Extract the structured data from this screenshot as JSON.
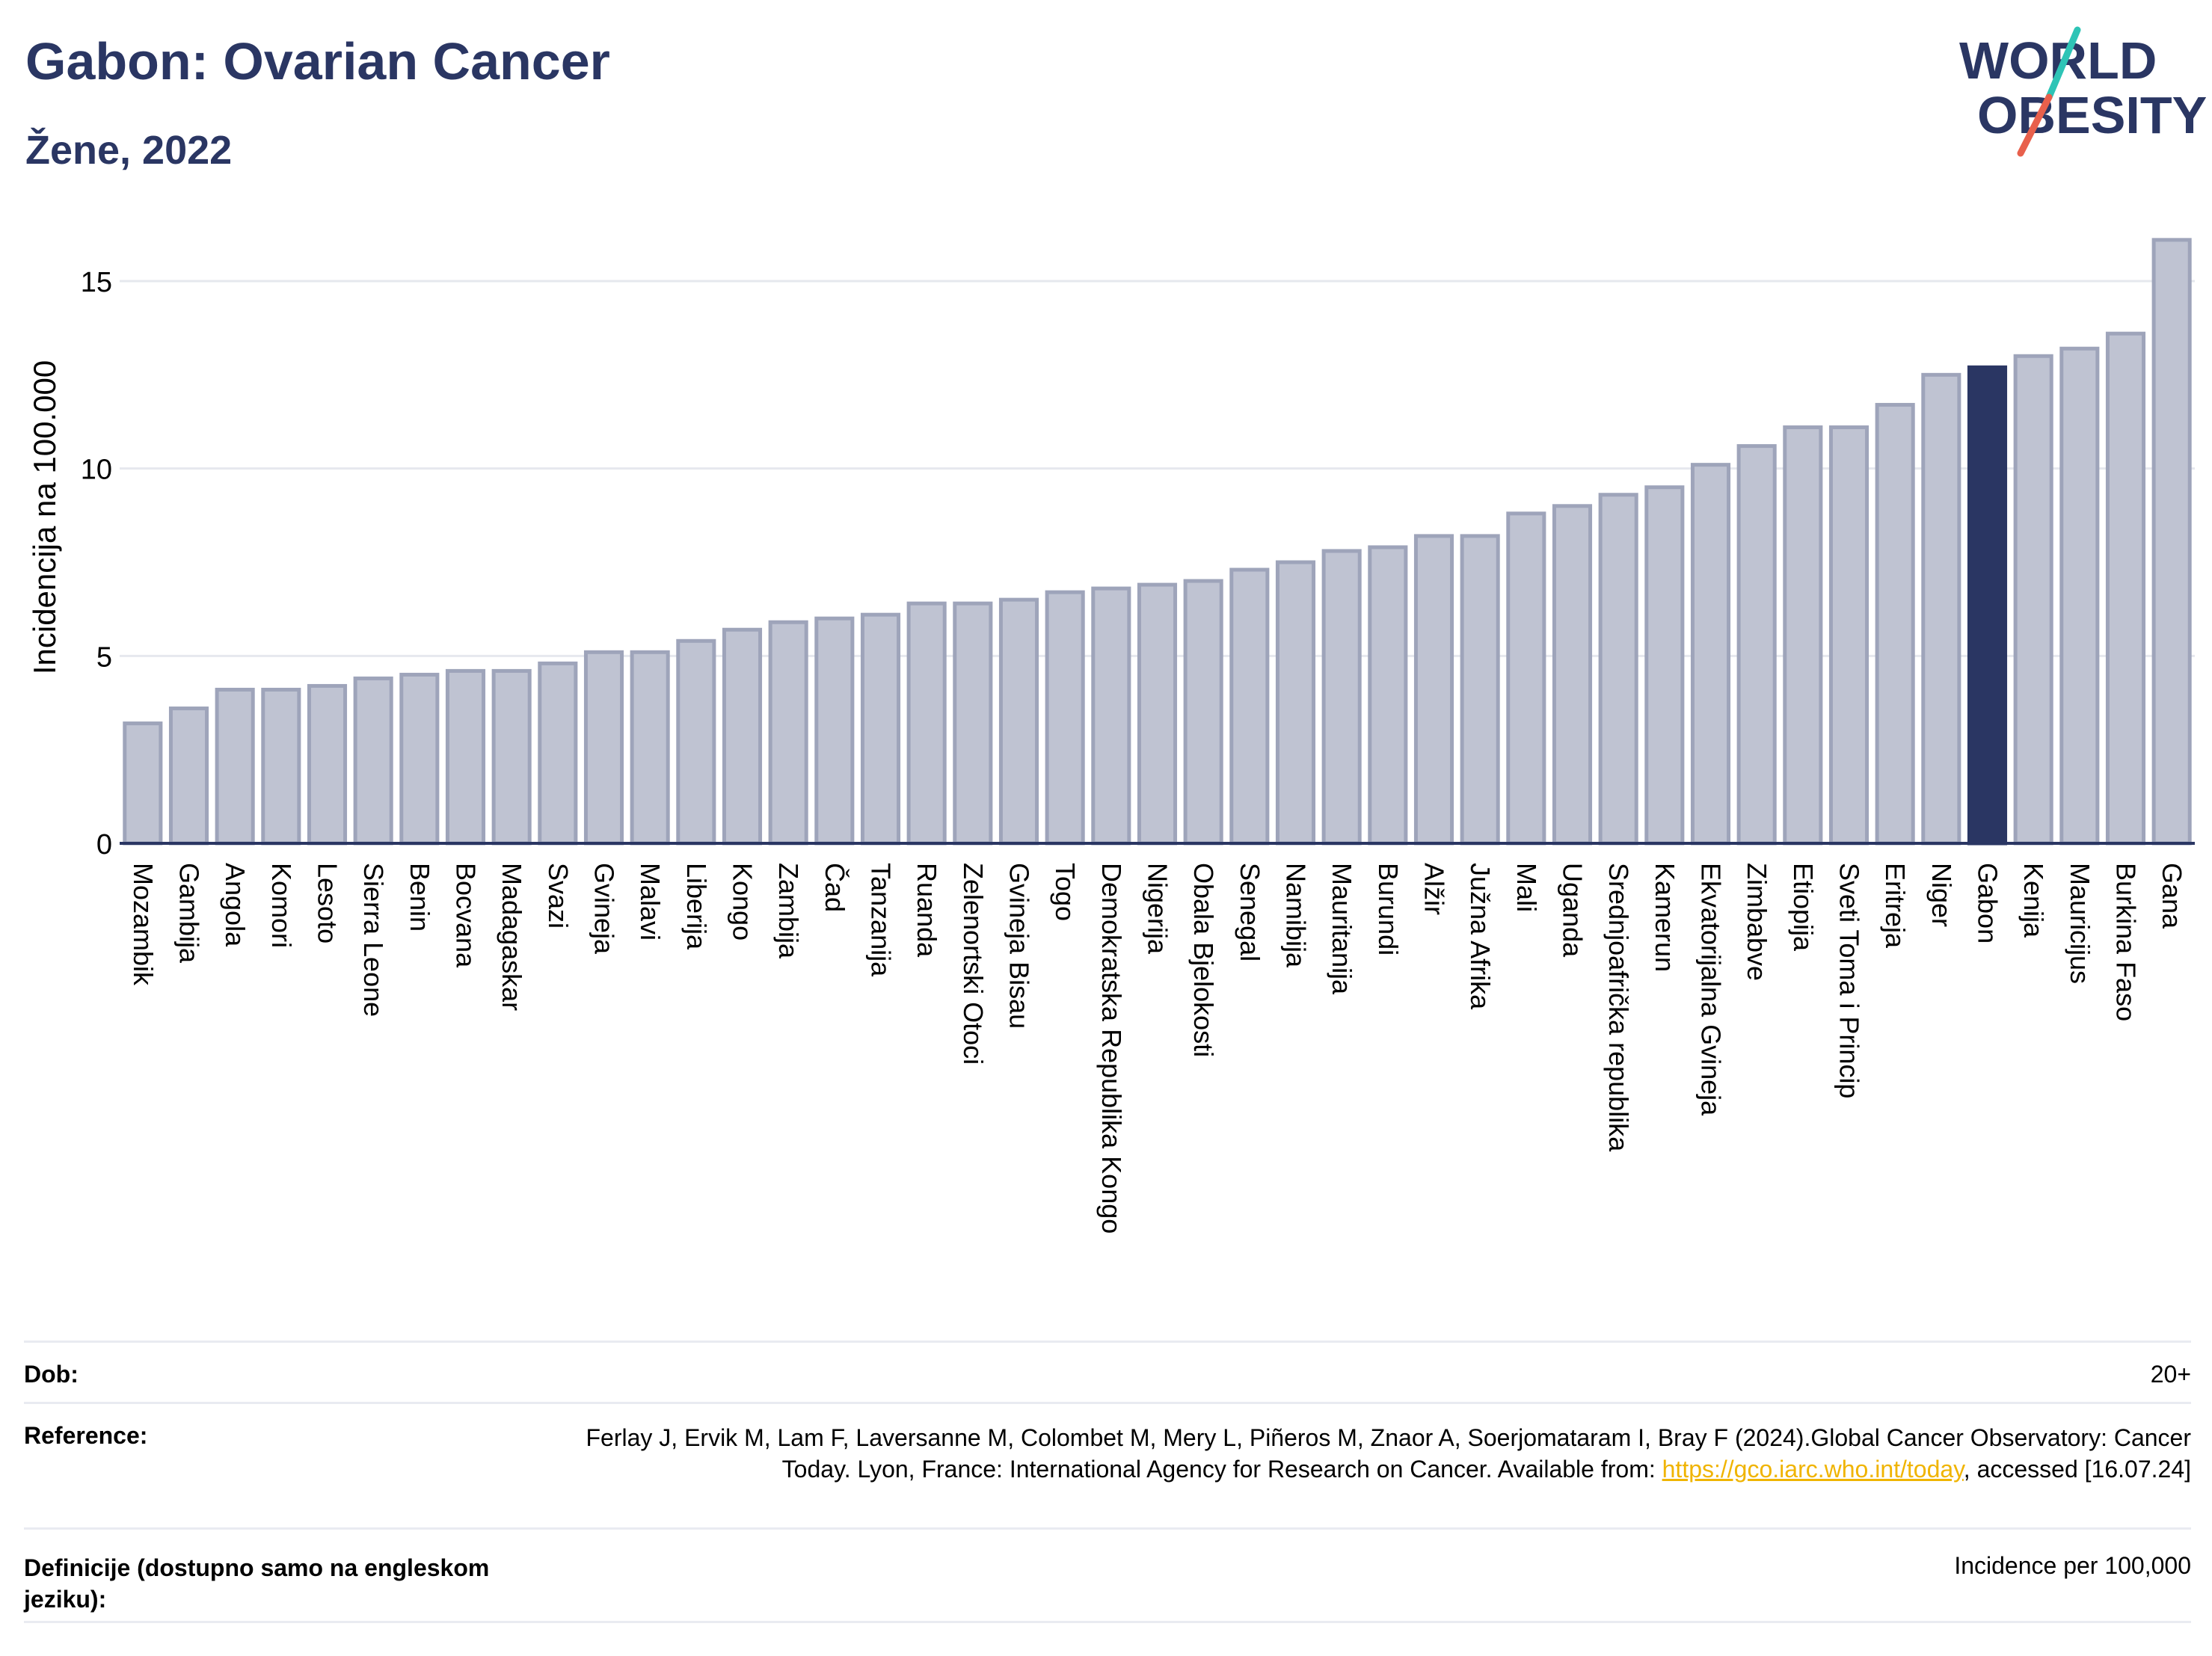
{
  "header": {
    "title": "Gabon: Ovarian Cancer",
    "subtitle": "Žene, 2022"
  },
  "logo": {
    "line1": "WORLD",
    "line2": "OBESITY",
    "slash_colors": [
      "#2ec4b6",
      "#e8604c"
    ],
    "text_color": "#2a3663"
  },
  "colors": {
    "bar_fill": "#bfc3d2",
    "bar_stroke": "#9ea4ba",
    "highlight": "#2a3663",
    "grid": "#e6e8ee",
    "axis": "#2a3663"
  },
  "chart_data": {
    "type": "bar",
    "title": "",
    "xlabel": "",
    "ylabel": "Incidencija na 100.000",
    "ylim": [
      0,
      16.5
    ],
    "yticks": [
      0,
      5,
      10,
      15
    ],
    "grid": true,
    "highlight": "Gabon",
    "categories": [
      "Mozambik",
      "Gambija",
      "Angola",
      "Komori",
      "Lesoto",
      "Sierra Leone",
      "Benin",
      "Bocvana",
      "Madagaskar",
      "Svazi",
      "Gvineja",
      "Malavi",
      "Liberija",
      "Kongo",
      "Zambija",
      "Čad",
      "Tanzanija",
      "Ruanda",
      "Zelenortski Otoci",
      "Gvineja Bisau",
      "Togo",
      "Demokratska Republika Kongo",
      "Nigerija",
      "Obala Bjelokosti",
      "Senegal",
      "Namibija",
      "Mauritanija",
      "Burundi",
      "Alžir",
      "Južna Afrika",
      "Mali",
      "Uganda",
      "Srednjoafrička republika",
      "Kamerun",
      "Ekvatorijalna Gvineja",
      "Zimbabve",
      "Etiopija",
      "Sveti Toma i Princip",
      "Eritreja",
      "Niger",
      "Gabon",
      "Kenija",
      "Mauricijus",
      "Burkina Faso",
      "Gana"
    ],
    "values": [
      3.2,
      3.6,
      4.1,
      4.1,
      4.2,
      4.4,
      4.5,
      4.6,
      4.6,
      4.8,
      5.1,
      5.1,
      5.4,
      5.7,
      5.9,
      6.0,
      6.1,
      6.4,
      6.4,
      6.5,
      6.7,
      6.8,
      6.9,
      7.0,
      7.3,
      7.5,
      7.8,
      7.9,
      8.2,
      8.2,
      8.8,
      9.0,
      9.3,
      9.5,
      10.1,
      10.6,
      11.1,
      11.1,
      11.7,
      12.5,
      12.7,
      13.0,
      13.2,
      13.6,
      16.1
    ]
  },
  "footer": {
    "age_label": "Dob:",
    "age_value": "20+",
    "ref_label": "Reference:",
    "ref_text_before": "Ferlay J, Ervik M, Lam F, Laversanne M, Colombet M, Mery L, Piñeros M, Znaor A, Soerjomataram I, Bray F (2024).Global Cancer Observatory: Cancer Today. Lyon, France: International Agency for Research on Cancer. Available from: ",
    "ref_link": "https://gco.iarc.who.int/today",
    "ref_text_after": ", accessed [16.07.24]",
    "def_label": "Definicije (dostupno samo na engleskom jeziku):",
    "def_value": "Incidence per 100,000"
  }
}
